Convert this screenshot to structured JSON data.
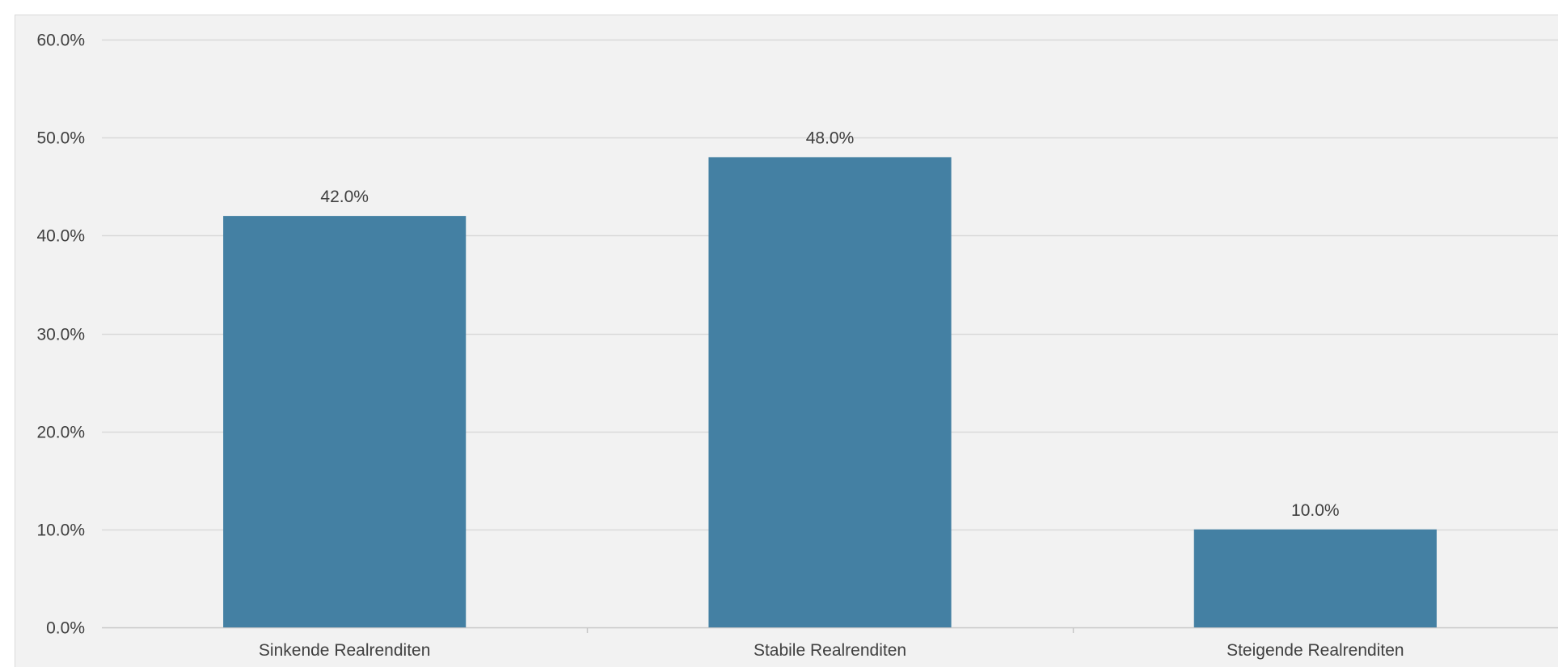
{
  "chart_data": {
    "type": "bar",
    "categories": [
      "Sinkende Realrenditen",
      "Stabile Realrenditen",
      "Steigende Realrenditen"
    ],
    "values": [
      42.0,
      48.0,
      10.0
    ],
    "data_labels": [
      "42.0%",
      "48.0%",
      "10.0%"
    ],
    "yticks": [
      0,
      10,
      20,
      30,
      40,
      50,
      60
    ],
    "ytick_labels": [
      "0.0%",
      "10.0%",
      "20.0%",
      "30.0%",
      "40.0%",
      "50.0%",
      "60.0%"
    ],
    "ylim": [
      0,
      60
    ],
    "title": "",
    "xlabel": "",
    "ylabel": "",
    "grid": true,
    "legend": "none",
    "colors": {
      "bar": "#4480a3",
      "background": "#f2f2f2",
      "gridline": "#d9d9d9",
      "text": "#404040"
    }
  }
}
